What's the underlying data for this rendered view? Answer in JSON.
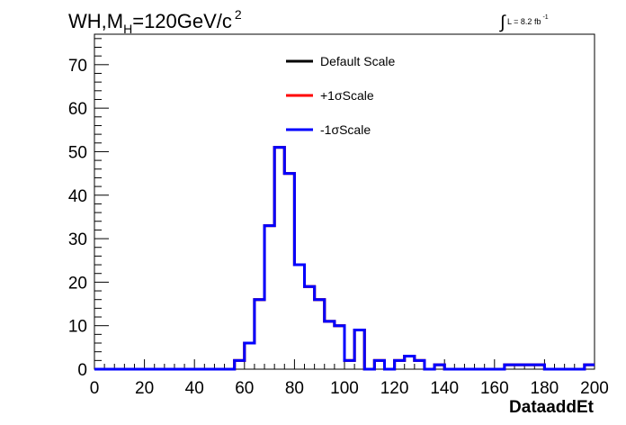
{
  "title": {
    "main_prefix": "WH,M",
    "main_sub": "H",
    "main_suffix": "=120GeV/c",
    "main_sup": "2"
  },
  "lumi": {
    "text": "L = 8.2 fb",
    "sup": "-1"
  },
  "chart_data": {
    "type": "line",
    "title": "WH,M_H=120GeV/c^2",
    "xlabel": "DataaddEt",
    "ylabel": "",
    "xlim": [
      0,
      200
    ],
    "ylim": [
      0,
      77
    ],
    "xticks": [
      0,
      20,
      40,
      60,
      80,
      100,
      120,
      140,
      160,
      180,
      200
    ],
    "yticks": [
      0,
      10,
      20,
      30,
      40,
      50,
      60,
      70
    ],
    "bin_width": 4,
    "bin_edges": [
      0,
      4,
      8,
      12,
      16,
      20,
      24,
      28,
      32,
      36,
      40,
      44,
      48,
      52,
      56,
      60,
      64,
      68,
      72,
      76,
      80,
      84,
      88,
      92,
      96,
      100,
      104,
      108,
      112,
      116,
      120,
      124,
      128,
      132,
      136,
      140,
      144,
      148,
      152,
      156,
      160,
      164,
      168,
      172,
      176,
      180,
      184,
      188,
      192,
      196,
      200
    ],
    "legend_position": "top-center",
    "series": [
      {
        "name": "Default Scale",
        "color": "#000000",
        "values": [
          0,
          0,
          0,
          0,
          0,
          0,
          0,
          0,
          0,
          0,
          0,
          0,
          0,
          0,
          2,
          6,
          16,
          33,
          51,
          45,
          24,
          19,
          16,
          11,
          10,
          2,
          9,
          0,
          2,
          0,
          2,
          3,
          2,
          0,
          1,
          0,
          0,
          0,
          0,
          0,
          0,
          1,
          1,
          1,
          1,
          0,
          0,
          0,
          0,
          1
        ]
      },
      {
        "name": "+1σScale",
        "color": "#ff0000",
        "values": [
          0,
          0,
          0,
          0,
          0,
          0,
          0,
          0,
          0,
          0,
          0,
          0,
          0,
          0,
          2,
          6,
          16,
          33,
          51,
          45,
          24,
          19,
          16,
          11,
          10,
          2,
          9,
          0,
          2,
          0,
          2,
          3,
          2,
          0,
          1,
          0,
          0,
          0,
          0,
          0,
          0,
          1,
          1,
          1,
          1,
          0,
          0,
          0,
          0,
          1
        ]
      },
      {
        "name": "-1σScale",
        "color": "#0000ff",
        "values": [
          0,
          0,
          0,
          0,
          0,
          0,
          0,
          0,
          0,
          0,
          0,
          0,
          0,
          0,
          2,
          6,
          16,
          33,
          51,
          45,
          24,
          19,
          16,
          11,
          10,
          2,
          9,
          0,
          2,
          0,
          2,
          3,
          2,
          0,
          1,
          0,
          0,
          0,
          0,
          0,
          0,
          1,
          1,
          1,
          1,
          0,
          0,
          0,
          0,
          1
        ]
      }
    ]
  }
}
